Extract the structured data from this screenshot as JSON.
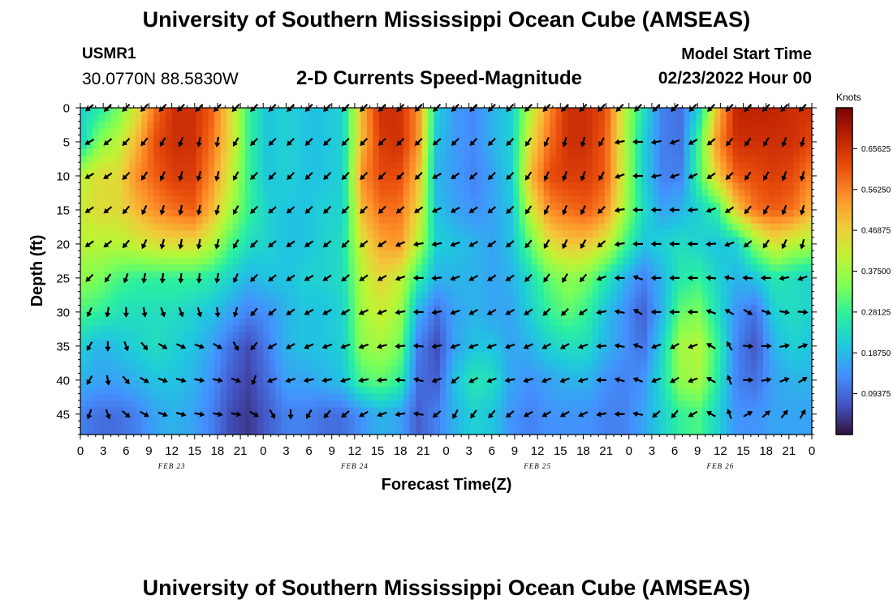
{
  "header": {
    "title": "University of Southern Mississippi Ocean Cube (AMSEAS)",
    "station_id": "USMR1",
    "coordinates": "30.0770N  88.5830W",
    "product": "2-D Currents Speed-Magnitude",
    "model_start_label": "Model Start Time",
    "model_start_value": "02/23/2022 Hour 00"
  },
  "footer": {
    "title": "University of Southern Mississippi Ocean Cube (AMSEAS)"
  },
  "chart_data": {
    "type": "heatmap",
    "title": "2-D Currents Speed-Magnitude",
    "xlabel": "Forecast Time(Z)",
    "ylabel": "Depth (ft)",
    "x_tick_labels": [
      "0",
      "3",
      "6",
      "9",
      "12",
      "15",
      "18",
      "21",
      "0",
      "3",
      "6",
      "9",
      "12",
      "15",
      "18",
      "21",
      "0",
      "3",
      "6",
      "9",
      "12",
      "15",
      "18",
      "21",
      "0",
      "3",
      "6",
      "9",
      "12",
      "15",
      "18",
      "21",
      "0"
    ],
    "x_range_hours": [
      0,
      96
    ],
    "date_labels": [
      {
        "hour": 12,
        "text": "FEB 23"
      },
      {
        "hour": 36,
        "text": "FEB 24"
      },
      {
        "hour": 60,
        "text": "FEB 25"
      },
      {
        "hour": 84,
        "text": "FEB 26"
      }
    ],
    "y_ticks": [
      0,
      5,
      10,
      15,
      20,
      25,
      30,
      35,
      40,
      45
    ],
    "y_range": [
      0,
      48
    ],
    "y_inverted": true,
    "colorbar": {
      "unit": "Knots",
      "ticks": [
        "0.65625",
        "0.56250",
        "0.46875",
        "0.37500",
        "0.28125",
        "0.18750",
        "0.09375"
      ],
      "tick_values": [
        0.65625,
        0.5625,
        0.46875,
        0.375,
        0.28125,
        0.1875,
        0.09375
      ],
      "range": [
        0.0,
        0.75
      ],
      "colors": [
        "#30123b",
        "#4454c4",
        "#4490fe",
        "#1fc8de",
        "#29efa2",
        "#7dff56",
        "#c1f334",
        "#f1ca3a",
        "#fe922a",
        "#ea4f0d",
        "#be2102",
        "#7a0403"
      ]
    },
    "speed_field_rows_depth_0_to_45_step_5": [
      [
        0.22,
        0.26,
        0.33,
        0.44,
        0.58,
        0.66,
        0.66,
        0.6,
        0.45,
        0.28,
        0.2,
        0.22,
        0.2,
        0.2,
        0.22,
        0.5,
        0.66,
        0.66,
        0.55,
        0.22,
        0.15,
        0.13,
        0.18,
        0.22,
        0.4,
        0.55,
        0.66,
        0.66,
        0.62,
        0.4,
        0.25,
        0.12,
        0.1,
        0.22,
        0.5,
        0.68,
        0.68,
        0.68,
        0.66,
        0.66
      ],
      [
        0.22,
        0.35,
        0.4,
        0.5,
        0.62,
        0.66,
        0.66,
        0.58,
        0.45,
        0.28,
        0.2,
        0.22,
        0.2,
        0.2,
        0.22,
        0.5,
        0.64,
        0.66,
        0.55,
        0.2,
        0.15,
        0.13,
        0.18,
        0.22,
        0.45,
        0.58,
        0.66,
        0.66,
        0.6,
        0.4,
        0.22,
        0.12,
        0.1,
        0.3,
        0.55,
        0.66,
        0.66,
        0.66,
        0.66,
        0.62
      ],
      [
        0.4,
        0.45,
        0.45,
        0.55,
        0.6,
        0.64,
        0.64,
        0.55,
        0.42,
        0.28,
        0.2,
        0.22,
        0.2,
        0.2,
        0.22,
        0.55,
        0.62,
        0.62,
        0.5,
        0.18,
        0.15,
        0.12,
        0.16,
        0.22,
        0.5,
        0.62,
        0.64,
        0.64,
        0.6,
        0.4,
        0.22,
        0.12,
        0.12,
        0.3,
        0.48,
        0.6,
        0.62,
        0.64,
        0.62,
        0.56
      ],
      [
        0.42,
        0.45,
        0.45,
        0.5,
        0.55,
        0.58,
        0.6,
        0.5,
        0.38,
        0.28,
        0.22,
        0.2,
        0.2,
        0.22,
        0.22,
        0.5,
        0.58,
        0.58,
        0.46,
        0.2,
        0.16,
        0.14,
        0.16,
        0.2,
        0.42,
        0.55,
        0.58,
        0.6,
        0.55,
        0.38,
        0.24,
        0.16,
        0.18,
        0.22,
        0.28,
        0.48,
        0.58,
        0.6,
        0.58,
        0.5
      ],
      [
        0.4,
        0.4,
        0.4,
        0.42,
        0.44,
        0.45,
        0.45,
        0.4,
        0.3,
        0.24,
        0.22,
        0.2,
        0.2,
        0.22,
        0.24,
        0.44,
        0.52,
        0.54,
        0.4,
        0.22,
        0.2,
        0.18,
        0.16,
        0.2,
        0.32,
        0.44,
        0.48,
        0.48,
        0.42,
        0.3,
        0.2,
        0.22,
        0.24,
        0.22,
        0.2,
        0.22,
        0.36,
        0.44,
        0.4,
        0.38
      ],
      [
        0.36,
        0.34,
        0.3,
        0.28,
        0.28,
        0.28,
        0.28,
        0.26,
        0.22,
        0.18,
        0.2,
        0.2,
        0.22,
        0.22,
        0.24,
        0.4,
        0.46,
        0.42,
        0.28,
        0.18,
        0.18,
        0.18,
        0.16,
        0.18,
        0.24,
        0.32,
        0.36,
        0.34,
        0.26,
        0.18,
        0.12,
        0.18,
        0.26,
        0.28,
        0.22,
        0.18,
        0.2,
        0.26,
        0.24,
        0.22
      ],
      [
        0.3,
        0.28,
        0.25,
        0.24,
        0.24,
        0.24,
        0.22,
        0.2,
        0.16,
        0.12,
        0.14,
        0.18,
        0.2,
        0.2,
        0.22,
        0.38,
        0.42,
        0.38,
        0.18,
        0.1,
        0.16,
        0.18,
        0.16,
        0.16,
        0.22,
        0.28,
        0.32,
        0.28,
        0.2,
        0.14,
        0.08,
        0.18,
        0.32,
        0.34,
        0.24,
        0.14,
        0.1,
        0.22,
        0.24,
        0.22
      ],
      [
        0.22,
        0.18,
        0.2,
        0.22,
        0.24,
        0.22,
        0.2,
        0.16,
        0.1,
        0.06,
        0.12,
        0.18,
        0.2,
        0.2,
        0.22,
        0.36,
        0.38,
        0.34,
        0.12,
        0.06,
        0.16,
        0.2,
        0.2,
        0.16,
        0.18,
        0.22,
        0.24,
        0.24,
        0.18,
        0.14,
        0.1,
        0.22,
        0.38,
        0.4,
        0.28,
        0.12,
        0.07,
        0.18,
        0.22,
        0.2
      ],
      [
        0.18,
        0.16,
        0.16,
        0.18,
        0.2,
        0.2,
        0.18,
        0.14,
        0.08,
        0.05,
        0.1,
        0.16,
        0.16,
        0.18,
        0.2,
        0.3,
        0.32,
        0.28,
        0.1,
        0.08,
        0.2,
        0.26,
        0.24,
        0.16,
        0.14,
        0.16,
        0.18,
        0.18,
        0.14,
        0.12,
        0.14,
        0.24,
        0.36,
        0.38,
        0.26,
        0.12,
        0.1,
        0.16,
        0.18,
        0.18
      ],
      [
        0.12,
        0.1,
        0.1,
        0.12,
        0.16,
        0.18,
        0.16,
        0.12,
        0.06,
        0.04,
        0.08,
        0.12,
        0.12,
        0.1,
        0.1,
        0.14,
        0.18,
        0.16,
        0.08,
        0.12,
        0.18,
        0.22,
        0.2,
        0.14,
        0.12,
        0.14,
        0.14,
        0.14,
        0.12,
        0.12,
        0.16,
        0.22,
        0.28,
        0.3,
        0.22,
        0.14,
        0.14,
        0.16,
        0.16,
        0.16
      ]
    ],
    "vector_angles_deg_rows_depth_0_to_45_step_5": [
      [
        220,
        225,
        225,
        225,
        225,
        225,
        225,
        225,
        225,
        225,
        225,
        225,
        225,
        225,
        225,
        225,
        225,
        225,
        225,
        225,
        225,
        225,
        225,
        225,
        225,
        225,
        225,
        225,
        225,
        225,
        225,
        225,
        225,
        225,
        225,
        225,
        225,
        225,
        225,
        225
      ],
      [
        210,
        220,
        225,
        230,
        240,
        250,
        260,
        260,
        240,
        225,
        225,
        225,
        225,
        225,
        225,
        225,
        225,
        225,
        225,
        220,
        225,
        225,
        225,
        225,
        235,
        245,
        255,
        255,
        240,
        190,
        180,
        190,
        200,
        210,
        220,
        230,
        235,
        240,
        250,
        255
      ],
      [
        210,
        215,
        225,
        235,
        245,
        255,
        255,
        255,
        240,
        225,
        225,
        225,
        225,
        225,
        225,
        225,
        225,
        225,
        225,
        210,
        215,
        220,
        225,
        225,
        235,
        245,
        250,
        250,
        240,
        200,
        180,
        190,
        200,
        205,
        215,
        225,
        235,
        240,
        250,
        255
      ],
      [
        215,
        220,
        230,
        245,
        255,
        260,
        260,
        255,
        240,
        225,
        220,
        220,
        225,
        225,
        225,
        225,
        225,
        220,
        215,
        205,
        210,
        215,
        220,
        225,
        235,
        245,
        250,
        245,
        225,
        190,
        180,
        180,
        180,
        185,
        200,
        215,
        230,
        240,
        250,
        255
      ],
      [
        215,
        220,
        230,
        245,
        255,
        260,
        260,
        255,
        240,
        225,
        220,
        215,
        215,
        220,
        225,
        220,
        215,
        205,
        190,
        190,
        200,
        210,
        215,
        220,
        230,
        240,
        245,
        240,
        220,
        190,
        180,
        180,
        180,
        180,
        185,
        200,
        220,
        235,
        245,
        255
      ],
      [
        225,
        235,
        250,
        260,
        265,
        265,
        265,
        260,
        245,
        225,
        220,
        215,
        210,
        215,
        220,
        215,
        210,
        200,
        180,
        185,
        200,
        210,
        215,
        215,
        225,
        235,
        240,
        230,
        200,
        180,
        160,
        180,
        180,
        180,
        175,
        170,
        175,
        180,
        190,
        200
      ],
      [
        245,
        260,
        270,
        280,
        290,
        290,
        285,
        275,
        255,
        230,
        220,
        215,
        210,
        210,
        210,
        205,
        200,
        190,
        180,
        190,
        200,
        210,
        210,
        210,
        215,
        225,
        225,
        215,
        190,
        170,
        150,
        180,
        180,
        180,
        160,
        150,
        330,
        340,
        350,
        355
      ],
      [
        240,
        270,
        290,
        310,
        330,
        335,
        340,
        330,
        300,
        230,
        210,
        210,
        205,
        200,
        200,
        200,
        195,
        185,
        175,
        190,
        200,
        200,
        200,
        200,
        205,
        210,
        210,
        200,
        185,
        170,
        160,
        200,
        210,
        200,
        150,
        120,
        355,
        0,
        10,
        20
      ],
      [
        240,
        280,
        310,
        330,
        340,
        345,
        350,
        350,
        340,
        250,
        200,
        195,
        190,
        190,
        195,
        190,
        185,
        175,
        165,
        200,
        220,
        210,
        200,
        190,
        195,
        200,
        200,
        195,
        180,
        165,
        160,
        200,
        210,
        200,
        150,
        110,
        0,
        10,
        20,
        30
      ],
      [
        250,
        290,
        320,
        330,
        340,
        345,
        350,
        350,
        350,
        330,
        300,
        270,
        240,
        230,
        220,
        210,
        200,
        190,
        170,
        220,
        240,
        235,
        230,
        220,
        210,
        210,
        210,
        205,
        190,
        180,
        170,
        220,
        230,
        210,
        150,
        110,
        30,
        40,
        50,
        60
      ]
    ]
  }
}
